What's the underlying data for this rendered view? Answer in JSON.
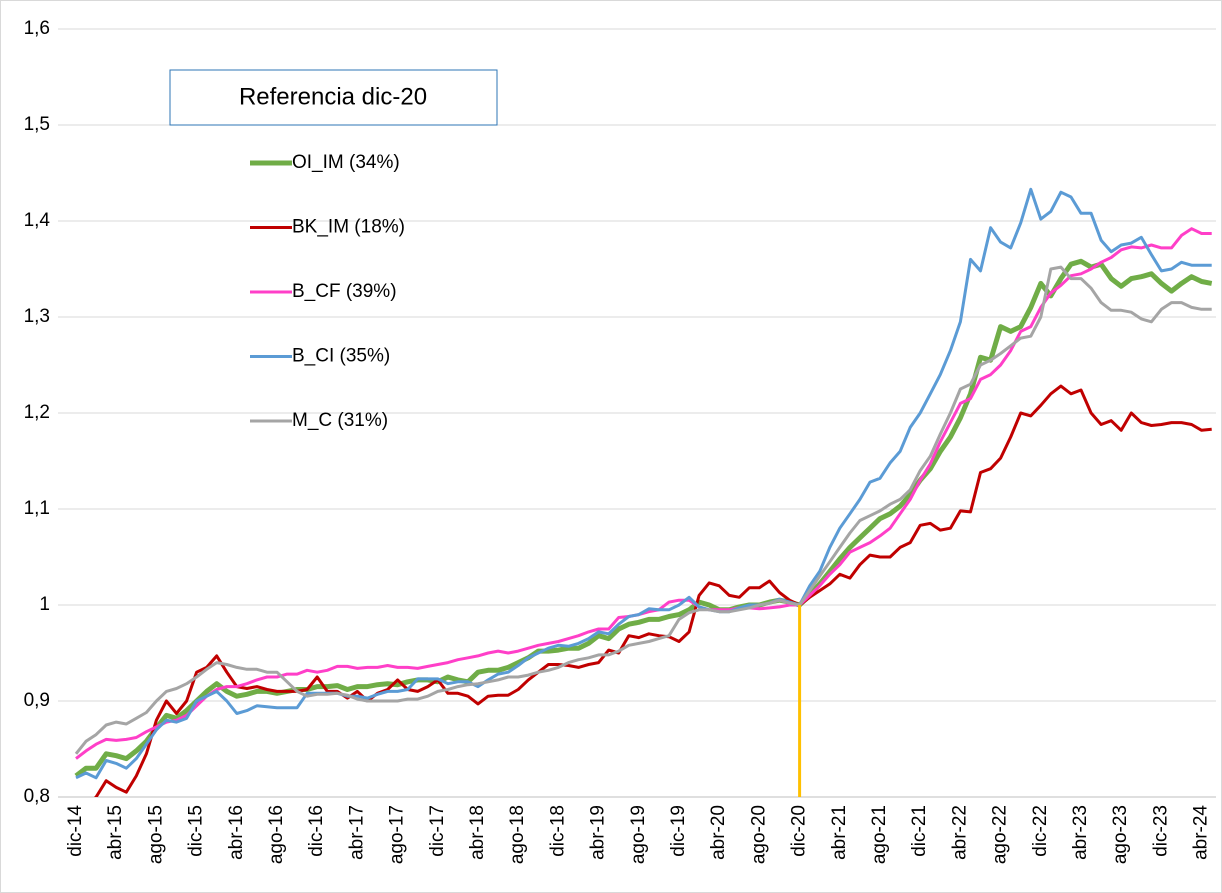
{
  "chart_data": {
    "type": "line",
    "annotation": "Referencia dic-20",
    "legend": "upper left",
    "grid": true,
    "reference_line": {
      "x": "dic-20",
      "color": "#ffc000"
    },
    "ylim": [
      0.8,
      1.6
    ],
    "yticks": [
      {
        "value": 0.8,
        "label": "0,8"
      },
      {
        "value": 0.9,
        "label": "0,9"
      },
      1,
      {
        "value": 1.1,
        "label": "1,1"
      },
      {
        "value": 1.2,
        "label": "1,2"
      },
      {
        "value": 1.3,
        "label": "1,3"
      },
      {
        "value": 1.4,
        "label": "1,4"
      },
      {
        "value": 1.5,
        "label": "1,5"
      },
      {
        "value": 1.6,
        "label": "1,6"
      }
    ],
    "categories": [
      "dic-14",
      null,
      null,
      null,
      "abr-15",
      null,
      null,
      null,
      "ago-15",
      null,
      null,
      null,
      "dic-15",
      null,
      null,
      null,
      "abr-16",
      null,
      null,
      null,
      "ago-16",
      null,
      null,
      null,
      "dic-16",
      null,
      null,
      null,
      "abr-17",
      null,
      null,
      null,
      "ago-17",
      null,
      null,
      null,
      "dic-17",
      null,
      null,
      null,
      "abr-18",
      null,
      null,
      null,
      "ago-18",
      null,
      null,
      null,
      "dic-18",
      null,
      null,
      null,
      "abr-19",
      null,
      null,
      null,
      "ago-19",
      null,
      null,
      null,
      "dic-19",
      null,
      null,
      null,
      "abr-20",
      null,
      null,
      null,
      "ago-20",
      null,
      null,
      null,
      "dic-20",
      null,
      null,
      null,
      "abr-21",
      null,
      null,
      null,
      "ago-21",
      null,
      null,
      null,
      "dic-21",
      null,
      null,
      null,
      "abr-22",
      null,
      null,
      null,
      "ago-22",
      null,
      null,
      null,
      "dic-22",
      null,
      null,
      null,
      "abr-23",
      null,
      null,
      null,
      "ago-23",
      null,
      null,
      null,
      "dic-23",
      null,
      null,
      null,
      "abr-24",
      null
    ],
    "series": [
      {
        "name": "OI_IM (34%)",
        "color": "#70ad47",
        "width": 5,
        "values": [
          0.822,
          0.83,
          0.83,
          0.845,
          0.843,
          0.84,
          0.848,
          0.858,
          0.872,
          0.885,
          0.882,
          0.89,
          0.9,
          0.91,
          0.918,
          0.91,
          0.905,
          0.907,
          0.91,
          0.91,
          0.908,
          0.91,
          0.912,
          0.912,
          0.915,
          0.915,
          0.916,
          0.912,
          0.915,
          0.915,
          0.917,
          0.918,
          0.917,
          0.92,
          0.922,
          0.922,
          0.92,
          0.925,
          0.922,
          0.92,
          0.93,
          0.932,
          0.932,
          0.935,
          0.94,
          0.945,
          0.952,
          0.952,
          0.953,
          0.955,
          0.955,
          0.96,
          0.968,
          0.965,
          0.975,
          0.98,
          0.982,
          0.985,
          0.985,
          0.988,
          0.99,
          0.995,
          1.003,
          1.0,
          0.995,
          0.995,
          0.998,
          1.0,
          1.0,
          1.003,
          1.005,
          1.003,
          1.0,
          1.01,
          1.022,
          1.035,
          1.048,
          1.06,
          1.07,
          1.08,
          1.09,
          1.095,
          1.103,
          1.115,
          1.13,
          1.142,
          1.16,
          1.175,
          1.195,
          1.22,
          1.258,
          1.255,
          1.29,
          1.285,
          1.29,
          1.31,
          1.335,
          1.322,
          1.34,
          1.355,
          1.358,
          1.352,
          1.355,
          1.34,
          1.332,
          1.34,
          1.342,
          1.345,
          1.335,
          1.327,
          1.335,
          1.342,
          1.337,
          1.335
        ]
      },
      {
        "name": "BK_IM (18%)",
        "color": "#c00000",
        "width": 3,
        "values": [
          0.775,
          0.79,
          0.8,
          0.817,
          0.81,
          0.805,
          0.822,
          0.845,
          0.88,
          0.9,
          0.887,
          0.9,
          0.93,
          0.935,
          0.947,
          0.93,
          0.915,
          0.913,
          0.915,
          0.912,
          0.91,
          0.91,
          0.91,
          0.912,
          0.925,
          0.91,
          0.91,
          0.903,
          0.91,
          0.9,
          0.908,
          0.912,
          0.922,
          0.912,
          0.91,
          0.915,
          0.922,
          0.908,
          0.908,
          0.905,
          0.897,
          0.905,
          0.906,
          0.906,
          0.912,
          0.922,
          0.93,
          0.938,
          0.938,
          0.937,
          0.935,
          0.938,
          0.94,
          0.953,
          0.95,
          0.968,
          0.966,
          0.97,
          0.968,
          0.967,
          0.962,
          0.972,
          1.01,
          1.023,
          1.02,
          1.01,
          1.008,
          1.018,
          1.018,
          1.025,
          1.013,
          1.005,
          1.0,
          1.008,
          1.015,
          1.022,
          1.032,
          1.028,
          1.042,
          1.052,
          1.05,
          1.05,
          1.06,
          1.065,
          1.083,
          1.085,
          1.078,
          1.08,
          1.098,
          1.097,
          1.138,
          1.142,
          1.153,
          1.175,
          1.2,
          1.197,
          1.208,
          1.22,
          1.228,
          1.22,
          1.224,
          1.2,
          1.188,
          1.192,
          1.182,
          1.2,
          1.19,
          1.187,
          1.188,
          1.19,
          1.19,
          1.188,
          1.182,
          1.183
        ]
      },
      {
        "name": "B_CF (39%)",
        "color": "#ff3fc8",
        "width": 3,
        "values": [
          0.84,
          0.848,
          0.855,
          0.86,
          0.859,
          0.86,
          0.862,
          0.868,
          0.873,
          0.878,
          0.88,
          0.885,
          0.895,
          0.905,
          0.912,
          0.915,
          0.915,
          0.918,
          0.922,
          0.925,
          0.925,
          0.928,
          0.928,
          0.932,
          0.93,
          0.932,
          0.936,
          0.936,
          0.934,
          0.935,
          0.935,
          0.937,
          0.935,
          0.935,
          0.934,
          0.936,
          0.938,
          0.94,
          0.943,
          0.945,
          0.947,
          0.95,
          0.952,
          0.95,
          0.952,
          0.955,
          0.958,
          0.96,
          0.962,
          0.965,
          0.968,
          0.972,
          0.975,
          0.975,
          0.987,
          0.988,
          0.99,
          0.993,
          0.995,
          1.003,
          1.005,
          1.005,
          0.998,
          0.995,
          0.995,
          0.995,
          0.997,
          0.997,
          0.996,
          0.997,
          0.998,
          1.0,
          1.0,
          1.01,
          1.02,
          1.032,
          1.042,
          1.055,
          1.06,
          1.065,
          1.072,
          1.08,
          1.095,
          1.11,
          1.13,
          1.147,
          1.17,
          1.19,
          1.21,
          1.215,
          1.235,
          1.24,
          1.25,
          1.265,
          1.285,
          1.29,
          1.31,
          1.325,
          1.333,
          1.343,
          1.345,
          1.35,
          1.357,
          1.362,
          1.37,
          1.373,
          1.372,
          1.375,
          1.372,
          1.372,
          1.385,
          1.392,
          1.387,
          1.387
        ]
      },
      {
        "name": "B_CI (35%)",
        "color": "#5b9bd5",
        "width": 3,
        "values": [
          0.82,
          0.825,
          0.82,
          0.838,
          0.835,
          0.83,
          0.84,
          0.855,
          0.87,
          0.88,
          0.878,
          0.882,
          0.9,
          0.905,
          0.91,
          0.9,
          0.887,
          0.89,
          0.895,
          0.894,
          0.893,
          0.893,
          0.893,
          0.908,
          0.908,
          0.908,
          0.908,
          0.905,
          0.905,
          0.903,
          0.907,
          0.91,
          0.91,
          0.912,
          0.923,
          0.923,
          0.923,
          0.918,
          0.92,
          0.92,
          0.915,
          0.922,
          0.928,
          0.93,
          0.937,
          0.945,
          0.95,
          0.955,
          0.958,
          0.957,
          0.96,
          0.965,
          0.972,
          0.97,
          0.98,
          0.988,
          0.99,
          0.996,
          0.995,
          0.995,
          1.0,
          1.008,
          0.998,
          0.995,
          0.993,
          0.993,
          0.997,
          1.0,
          1.0,
          1.002,
          1.006,
          1.003,
          1.0,
          1.02,
          1.035,
          1.06,
          1.08,
          1.095,
          1.11,
          1.128,
          1.132,
          1.148,
          1.16,
          1.185,
          1.2,
          1.22,
          1.24,
          1.265,
          1.295,
          1.36,
          1.348,
          1.393,
          1.378,
          1.372,
          1.398,
          1.433,
          1.402,
          1.41,
          1.43,
          1.425,
          1.408,
          1.408,
          1.38,
          1.368,
          1.375,
          1.377,
          1.383,
          1.365,
          1.348,
          1.35,
          1.357,
          1.354,
          1.354,
          1.354
        ]
      },
      {
        "name": "M_C (31%)",
        "color": "#a5a5a5",
        "width": 3,
        "values": [
          0.845,
          0.858,
          0.865,
          0.875,
          0.878,
          0.876,
          0.882,
          0.888,
          0.9,
          0.91,
          0.913,
          0.918,
          0.925,
          0.933,
          0.94,
          0.938,
          0.935,
          0.933,
          0.933,
          0.93,
          0.93,
          0.92,
          0.91,
          0.905,
          0.907,
          0.907,
          0.908,
          0.906,
          0.902,
          0.9,
          0.9,
          0.9,
          0.9,
          0.902,
          0.902,
          0.905,
          0.91,
          0.912,
          0.915,
          0.917,
          0.918,
          0.92,
          0.922,
          0.925,
          0.925,
          0.927,
          0.93,
          0.932,
          0.935,
          0.94,
          0.943,
          0.945,
          0.948,
          0.948,
          0.952,
          0.958,
          0.96,
          0.962,
          0.965,
          0.968,
          0.985,
          0.992,
          0.995,
          0.995,
          0.993,
          0.993,
          0.995,
          0.997,
          1.0,
          1.002,
          1.005,
          1.002,
          1.0,
          1.015,
          1.03,
          1.045,
          1.06,
          1.075,
          1.088,
          1.093,
          1.098,
          1.105,
          1.11,
          1.12,
          1.14,
          1.155,
          1.178,
          1.2,
          1.225,
          1.23,
          1.25,
          1.255,
          1.262,
          1.27,
          1.278,
          1.28,
          1.3,
          1.35,
          1.352,
          1.34,
          1.34,
          1.33,
          1.315,
          1.307,
          1.307,
          1.305,
          1.298,
          1.295,
          1.308,
          1.315,
          1.315,
          1.31,
          1.308,
          1.308
        ]
      }
    ]
  }
}
